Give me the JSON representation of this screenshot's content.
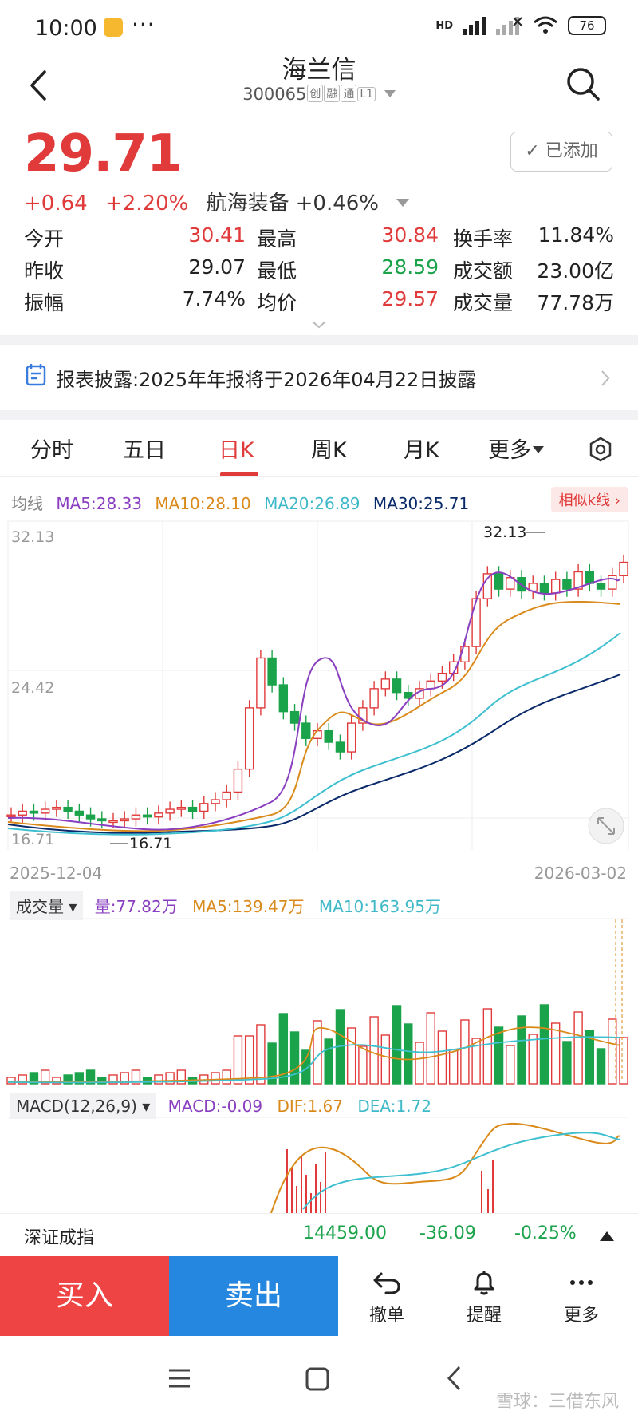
{
  "status_bar": {
    "time": "10:00",
    "dots": "···",
    "network": "HD",
    "signal_sub": "6",
    "battery": "76"
  },
  "header": {
    "title": "海兰信",
    "code": "300065",
    "tags": [
      "创",
      "融",
      "通",
      "L1"
    ]
  },
  "quote": {
    "price": "29.71",
    "change": "+0.64",
    "change_pct": "+2.20%",
    "sector_name": "航海装备",
    "sector_change": "+0.46%",
    "added_label": "已添加"
  },
  "stats": [
    {
      "l1": "今开",
      "v1": "30.41",
      "c1": "red",
      "l2": "最高",
      "v2": "30.84",
      "c2": "red",
      "l3": "换手率",
      "v3": "11.84%"
    },
    {
      "l1": "昨收",
      "v1": "29.07",
      "c1": "blk",
      "l2": "最低",
      "v2": "28.59",
      "c2": "green",
      "l3": "成交额",
      "v3": "23.00亿"
    },
    {
      "l1": "振幅",
      "v1": "7.74%",
      "c1": "blk",
      "l2": "均价",
      "v2": "29.57",
      "c2": "red",
      "l3": "成交量",
      "v3": "77.78万"
    }
  ],
  "notice": {
    "text": "报表披露:2025年年报将于2026年04月22日披露"
  },
  "tabs": [
    "分时",
    "五日",
    "日K",
    "周K",
    "月K",
    "更多"
  ],
  "active_tab": "日K",
  "ma": {
    "label": "均线",
    "ma5": "MA5:28.33",
    "ma10": "MA10:28.10",
    "ma20": "MA20:26.89",
    "ma30": "MA30:25.71",
    "similar": "相似k线"
  },
  "kline": {
    "y_top_label": "32.13",
    "y_mid_label": "24.42",
    "y_bottom_label": "16.71",
    "high_marker": "32.13",
    "low_marker": "16.71",
    "date_start": "2025-12-04",
    "date_end": "2026-03-02"
  },
  "volume": {
    "selector": "成交量",
    "vol": "量:77.82万",
    "ma5": "MA5:139.47万",
    "ma10": "MA10:163.95万"
  },
  "macd": {
    "selector": "MACD(12,26,9)",
    "macd": "MACD:-0.09",
    "dif": "DIF:1.67",
    "dea": "DEA:1.72"
  },
  "index": {
    "name": "深证成指",
    "value": "14459.00",
    "change": "-36.09",
    "pct": "-0.25%"
  },
  "actions": {
    "buy": "买入",
    "sell": "卖出",
    "cancel": "撤单",
    "alert": "提醒",
    "more": "更多"
  },
  "watermark": "雪球：三借东风",
  "colors": {
    "up": "#e03a3a",
    "down": "#1aa34a",
    "ma5": "#8a3fc0",
    "ma10": "#d98a1a",
    "ma20": "#3fc0d0",
    "ma30": "#0a2a6a",
    "buy": "#ef4444",
    "sell": "#2587e0"
  }
}
